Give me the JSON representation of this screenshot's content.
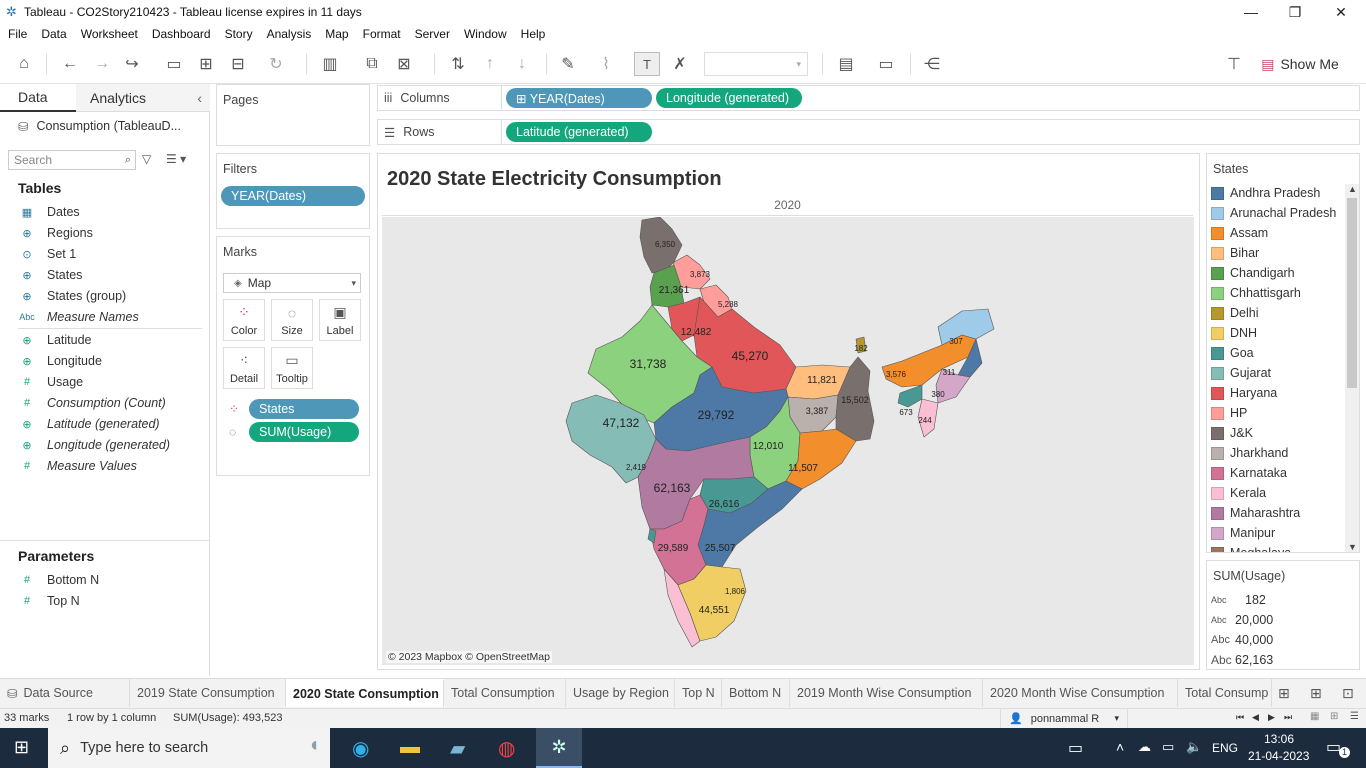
{
  "window": {
    "title": "Tableau - CO2Story210423 - Tableau license expires in 11 days",
    "minimize": "—",
    "restore": "❐",
    "close": "✕"
  },
  "menu": [
    "File",
    "Data",
    "Worksheet",
    "Dashboard",
    "Story",
    "Analysis",
    "Map",
    "Format",
    "Server",
    "Window",
    "Help"
  ],
  "toolbar": {
    "show_me": "Show Me"
  },
  "left_pane": {
    "tab_data": "Data",
    "tab_analytics": "Analytics",
    "datasource": "Consumption (TableauD...",
    "search_placeholder": "Search",
    "tables_header": "Tables",
    "fields": [
      {
        "icon": "▦",
        "name": "Dates",
        "italic": false
      },
      {
        "icon": "⊕",
        "name": "Regions",
        "italic": false
      },
      {
        "icon": "⊙",
        "name": "Set 1",
        "italic": false
      },
      {
        "icon": "⊕",
        "name": "States",
        "italic": false
      },
      {
        "icon": "⊕",
        "name": "States (group)",
        "italic": false
      },
      {
        "icon": "Abc",
        "name": "Measure Names",
        "italic": true
      },
      {
        "icon": "⊕",
        "name": "Latitude",
        "italic": false
      },
      {
        "icon": "⊕",
        "name": "Longitude",
        "italic": false
      },
      {
        "icon": "#",
        "name": "Usage",
        "italic": false
      },
      {
        "icon": "#",
        "name": "Consumption (Count)",
        "italic": true
      },
      {
        "icon": "⊕",
        "name": "Latitude (generated)",
        "italic": true
      },
      {
        "icon": "⊕",
        "name": "Longitude (generated)",
        "italic": true
      },
      {
        "icon": "#",
        "name": "Measure Values",
        "italic": true
      }
    ],
    "parameters_header": "Parameters",
    "parameters": [
      {
        "icon": "#",
        "name": "Bottom N"
      },
      {
        "icon": "#",
        "name": "Top N"
      }
    ]
  },
  "cards": {
    "pages": "Pages",
    "filters": "Filters",
    "filter_pill": "YEAR(Dates)",
    "marks": "Marks",
    "mark_type": "Map",
    "mark_buttons": [
      "Color",
      "Size",
      "Label",
      "Detail",
      "Tooltip"
    ],
    "mark_pills": [
      "States",
      "SUM(Usage)"
    ]
  },
  "shelves": {
    "columns_label": "Columns",
    "rows_label": "Rows",
    "columns_pills": [
      "⊞ YEAR(Dates)",
      "Longitude (generated)"
    ],
    "rows_pills": [
      "Latitude (generated)"
    ]
  },
  "viz": {
    "title": "2020  State Electricity Consumption",
    "column_header": "2020",
    "attribution": "© 2023 Mapbox © OpenStreetMap"
  },
  "map_labels": [
    {
      "state": "J&K",
      "value": "6,350"
    },
    {
      "state": "HP",
      "value": "3,873"
    },
    {
      "state": "Punjab",
      "value": "21,361"
    },
    {
      "state": "Uttarakhand",
      "value": "5,288"
    },
    {
      "state": "Haryana",
      "value": "12,482"
    },
    {
      "state": "Uttar Pradesh",
      "value": "45,270"
    },
    {
      "state": "Rajasthan",
      "value": "31,738"
    },
    {
      "state": "Bihar",
      "value": "11,821"
    },
    {
      "state": "Sikkim",
      "value": "182"
    },
    {
      "state": "Assam",
      "value": "3,576"
    },
    {
      "state": "Arunachal Pradesh",
      "value": "307"
    },
    {
      "state": "Nagaland",
      "value": "311"
    },
    {
      "state": "Manipur",
      "value": "380"
    },
    {
      "state": "Meghalaya",
      "value": "673"
    },
    {
      "state": "Mizoram",
      "value": "244"
    },
    {
      "state": "Jharkhand",
      "value": "3,387"
    },
    {
      "state": "West Bengal",
      "value": "15,502"
    },
    {
      "state": "Gujarat",
      "value": "47,132"
    },
    {
      "state": "Madhya Pradesh",
      "value": "29,792"
    },
    {
      "state": "Chhattisgarh",
      "value": "12,010"
    },
    {
      "state": "Odisha",
      "value": "11,507"
    },
    {
      "state": "DNH",
      "value": "2,419"
    },
    {
      "state": "Maharashtra",
      "value": "62,163"
    },
    {
      "state": "Telangana",
      "value": "26,616"
    },
    {
      "state": "Karnataka",
      "value": "29,589"
    },
    {
      "state": "Andhra Pradesh",
      "value": "25,507"
    },
    {
      "state": "Puducherry",
      "value": "1,806"
    },
    {
      "state": "Tamil Nadu",
      "value": "44,551"
    }
  ],
  "legend": {
    "title": "States",
    "items": [
      {
        "name": "Andhra Pradesh",
        "color": "#4e79a7"
      },
      {
        "name": "Arunachal Pradesh",
        "color": "#a0cbe8"
      },
      {
        "name": "Assam",
        "color": "#f28e2b"
      },
      {
        "name": "Bihar",
        "color": "#ffbe7d"
      },
      {
        "name": "Chandigarh",
        "color": "#59a14f"
      },
      {
        "name": "Chhattisgarh",
        "color": "#8cd17d"
      },
      {
        "name": "Delhi",
        "color": "#b6992d"
      },
      {
        "name": "DNH",
        "color": "#f1ce63"
      },
      {
        "name": "Goa",
        "color": "#499894"
      },
      {
        "name": "Gujarat",
        "color": "#86bcb6"
      },
      {
        "name": "Haryana",
        "color": "#e15759"
      },
      {
        "name": "HP",
        "color": "#ff9d9a"
      },
      {
        "name": "J&K",
        "color": "#79706e"
      },
      {
        "name": "Jharkhand",
        "color": "#bab0ac"
      },
      {
        "name": "Karnataka",
        "color": "#d37295"
      },
      {
        "name": "Kerala",
        "color": "#fabfd2"
      },
      {
        "name": "Maharashtra",
        "color": "#b07aa1"
      },
      {
        "name": "Manipur",
        "color": "#d4a6c8"
      },
      {
        "name": "Meghalaya",
        "color": "#9d7660"
      }
    ]
  },
  "size_legend": {
    "title": "SUM(Usage)",
    "items": [
      "182",
      "20,000",
      "40,000",
      "62,163"
    ]
  },
  "sheet_tabs": [
    {
      "label": "Data Source",
      "active": false
    },
    {
      "label": "2019 State Consumption",
      "active": false
    },
    {
      "label": "2020 State Consumption",
      "active": true
    },
    {
      "label": "Total Consumption",
      "active": false
    },
    {
      "label": "Usage by Region",
      "active": false
    },
    {
      "label": "Top N",
      "active": false
    },
    {
      "label": "Bottom N",
      "active": false
    },
    {
      "label": "2019 Month Wise Consumption",
      "active": false
    },
    {
      "label": "2020 Month Wise Consumption",
      "active": false
    },
    {
      "label": "Total Consump",
      "active": false
    }
  ],
  "status": {
    "marks": "33 marks",
    "rows_cols": "1 row by 1 column",
    "sum": "SUM(Usage): 493,523",
    "user": "ponnammal R"
  },
  "taskbar": {
    "search_placeholder": "Type here to search",
    "lang": "ENG",
    "time": "13:06",
    "date": "21-04-2023",
    "notif_count": "1"
  }
}
